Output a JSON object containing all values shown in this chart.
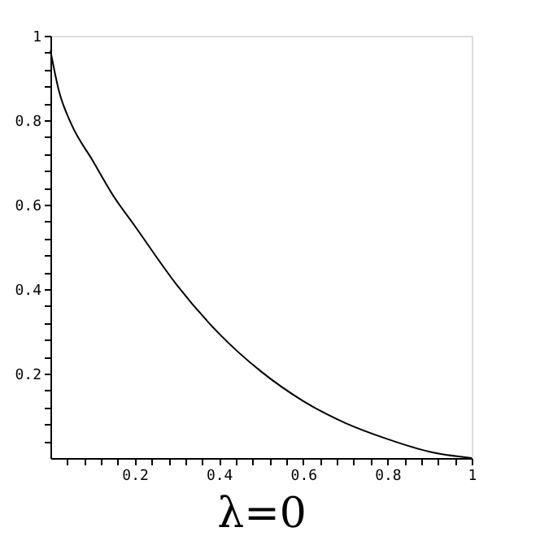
{
  "chart_data": {
    "type": "line",
    "xlabel": "λ=0",
    "x": [
      0,
      0.02,
      0.05,
      0.1,
      0.15,
      0.2,
      0.3,
      0.4,
      0.5,
      0.6,
      0.7,
      0.8,
      0.9,
      1
    ],
    "series": [
      {
        "color": "#000000",
        "values": [
          0.965,
          0.87,
          0.79,
          0.705,
          0.62,
          0.55,
          0.41,
          0.295,
          0.205,
          0.135,
          0.083,
          0.045,
          0.015,
          0
        ]
      }
    ],
    "xlim": [
      0,
      1
    ],
    "ylim": [
      0,
      1
    ],
    "xticks": [
      {
        "value": 0.04,
        "label": null
      },
      {
        "value": 0.08,
        "label": null
      },
      {
        "value": 0.12,
        "label": null
      },
      {
        "value": 0.16,
        "label": null
      },
      0.2,
      {
        "value": 0.24,
        "label": null
      },
      {
        "value": 0.28,
        "label": null
      },
      {
        "value": 0.32,
        "label": null
      },
      {
        "value": 0.36,
        "label": null
      },
      0.4,
      {
        "value": 0.44,
        "label": null
      },
      {
        "value": 0.48,
        "label": null
      },
      {
        "value": 0.52,
        "label": null
      },
      {
        "value": 0.56,
        "label": null
      },
      0.6,
      {
        "value": 0.64,
        "label": null
      },
      {
        "value": 0.68,
        "label": null
      },
      {
        "value": 0.72,
        "label": null
      },
      {
        "value": 0.76,
        "label": null
      },
      0.8,
      {
        "value": 0.84,
        "label": null
      },
      {
        "value": 0.88,
        "label": null
      },
      {
        "value": 0.92,
        "label": null
      },
      {
        "value": 0.96,
        "label": null
      },
      1
    ],
    "yticks": [
      {
        "value": 0.04,
        "label": null
      },
      {
        "value": 0.08,
        "label": null
      },
      {
        "value": 0.12,
        "label": null
      },
      {
        "value": 0.16,
        "label": null
      },
      0.2,
      {
        "value": 0.24,
        "label": null
      },
      {
        "value": 0.28,
        "label": null
      },
      {
        "value": 0.32,
        "label": null
      },
      {
        "value": 0.36,
        "label": null
      },
      0.4,
      {
        "value": 0.44,
        "label": null
      },
      {
        "value": 0.48,
        "label": null
      },
      {
        "value": 0.52,
        "label": null
      },
      {
        "value": 0.56,
        "label": null
      },
      0.6,
      {
        "value": 0.64,
        "label": null
      },
      {
        "value": 0.68,
        "label": null
      },
      {
        "value": 0.72,
        "label": null
      },
      {
        "value": 0.76,
        "label": null
      },
      0.8,
      {
        "value": 0.84,
        "label": null
      },
      {
        "value": 0.88,
        "label": null
      },
      {
        "value": 0.92,
        "label": null
      },
      {
        "value": 0.96,
        "label": null
      },
      1
    ],
    "grid": false,
    "marker": "none",
    "line_style": "solid"
  }
}
